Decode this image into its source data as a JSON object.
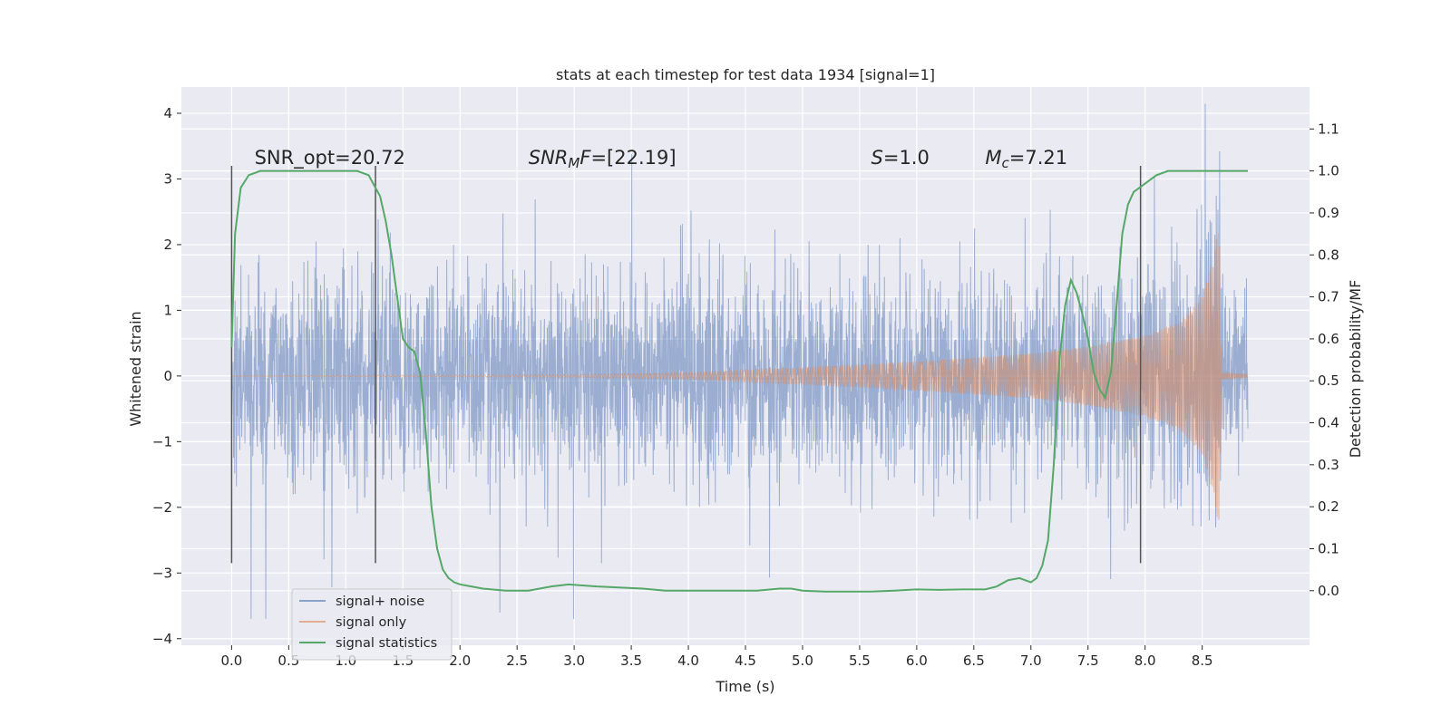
{
  "chart_data": {
    "type": "line",
    "title": "stats at each timestep for test data 1934 [signal=1]",
    "xlabel": "Time (s)",
    "ylabel": "Whitened strain",
    "y2label": "Detection probability/MF",
    "xlim": [
      -0.44,
      9.44
    ],
    "ylim": [
      -4.1,
      4.4
    ],
    "y2lim": [
      -0.13,
      1.2
    ],
    "xticks": [
      0.0,
      0.5,
      1.0,
      1.5,
      2.0,
      2.5,
      3.0,
      3.5,
      4.0,
      4.5,
      5.0,
      5.5,
      6.0,
      6.5,
      7.0,
      7.5,
      8.0,
      8.5
    ],
    "xtick_labels": [
      "0.0",
      "0.5",
      "1.0",
      "1.5",
      "2.0",
      "2.5",
      "3.0",
      "3.5",
      "4.0",
      "4.5",
      "5.0",
      "5.5",
      "6.0",
      "6.5",
      "7.0",
      "7.5",
      "8.0",
      "8.5"
    ],
    "yticks": [
      4,
      3,
      2,
      1,
      0,
      -1,
      -2,
      -3,
      -4
    ],
    "ytick_labels": [
      "4",
      "3",
      "2",
      "1",
      "0",
      "−1",
      "−2",
      "−3",
      "−4"
    ],
    "y2ticks": [
      1.1,
      1.0,
      0.9,
      0.8,
      0.7,
      0.6,
      0.5,
      0.4,
      0.3,
      0.2,
      0.1,
      0.0
    ],
    "y2tick_labels": [
      "1.1",
      "1.0",
      "0.9",
      "0.8",
      "0.7",
      "0.6",
      "0.5",
      "0.4",
      "0.3",
      "0.2",
      "0.1",
      "0.0"
    ],
    "grid": true,
    "legend_position": "lower-left",
    "legend": [
      "signal+ noise",
      "signal only",
      "signal statistics"
    ],
    "series": [
      {
        "name": "signal+ noise",
        "axis": "left",
        "color": "#4c72b0",
        "opacity": 0.5,
        "x_range": [
          0.0,
          8.9
        ],
        "description_values": {
          "typical_abs": 1.5,
          "max": 4.0,
          "min": -3.7
        }
      },
      {
        "name": "signal only",
        "axis": "left",
        "color": "#dd8452",
        "x_range": [
          0.0,
          8.9
        ],
        "envelope": {
          "t": [
            0.0,
            3.0,
            4.0,
            5.0,
            6.0,
            7.0,
            7.5,
            8.0,
            8.3,
            8.5,
            8.6,
            8.65,
            8.67,
            8.9
          ],
          "amp": [
            0.0,
            0.02,
            0.05,
            0.13,
            0.22,
            0.34,
            0.45,
            0.62,
            0.82,
            1.2,
            1.8,
            2.4,
            0.05,
            0.02
          ]
        }
      },
      {
        "name": "signal statistics",
        "axis": "right",
        "color": "#55a868",
        "x": [
          0.0,
          0.03,
          0.08,
          0.15,
          0.25,
          0.4,
          0.6,
          0.8,
          1.0,
          1.1,
          1.2,
          1.3,
          1.35,
          1.4,
          1.45,
          1.5,
          1.55,
          1.6,
          1.65,
          1.7,
          1.75,
          1.8,
          1.85,
          1.9,
          1.95,
          2.0,
          2.1,
          2.2,
          2.4,
          2.6,
          2.8,
          2.95,
          3.2,
          3.6,
          3.8,
          4.2,
          4.6,
          4.8,
          4.9,
          5.0,
          5.2,
          5.6,
          5.8,
          6.0,
          6.2,
          6.4,
          6.6,
          6.7,
          6.8,
          6.9,
          7.0,
          7.05,
          7.1,
          7.15,
          7.2,
          7.25,
          7.3,
          7.35,
          7.4,
          7.45,
          7.5,
          7.55,
          7.6,
          7.65,
          7.7,
          7.75,
          7.8,
          7.85,
          7.9,
          8.0,
          8.1,
          8.2,
          8.3,
          8.4,
          8.5,
          8.7,
          8.9
        ],
        "y": [
          0.58,
          0.85,
          0.96,
          0.99,
          1.0,
          1.0,
          1.0,
          1.0,
          1.0,
          1.0,
          0.99,
          0.94,
          0.88,
          0.8,
          0.7,
          0.6,
          0.58,
          0.57,
          0.52,
          0.38,
          0.2,
          0.1,
          0.05,
          0.03,
          0.02,
          0.015,
          0.01,
          0.005,
          0.0,
          0.0,
          0.01,
          0.015,
          0.01,
          0.005,
          0.0,
          0.0,
          0.0,
          0.005,
          0.005,
          0.0,
          -0.002,
          -0.002,
          0.0,
          0.003,
          0.002,
          0.003,
          0.003,
          0.01,
          0.025,
          0.03,
          0.02,
          0.03,
          0.06,
          0.12,
          0.3,
          0.55,
          0.68,
          0.74,
          0.71,
          0.66,
          0.6,
          0.52,
          0.48,
          0.46,
          0.52,
          0.68,
          0.85,
          0.92,
          0.95,
          0.97,
          0.99,
          1.0,
          1.0,
          1.0,
          1.0,
          1.0,
          1.0
        ]
      }
    ],
    "vlines": [
      {
        "x": 0.0,
        "y_range": [
          -2.85,
          3.2
        ]
      },
      {
        "x": 1.26,
        "y_range": [
          -2.85,
          3.2
        ]
      },
      {
        "x": 7.96,
        "y_range": [
          -2.85,
          3.2
        ]
      }
    ],
    "annotations": [
      {
        "id": "snr-opt",
        "x": 0.2,
        "y": 3.2,
        "parts": [
          [
            "SNR_opt=20.72",
            "n"
          ]
        ]
      },
      {
        "id": "snr-mf",
        "x": 2.6,
        "y": 3.2,
        "parts": [
          [
            "SNR",
            "i"
          ],
          [
            "M",
            "is"
          ],
          [
            "F",
            "i"
          ],
          [
            "=[22.19]",
            "n"
          ]
        ]
      },
      {
        "id": "s-value",
        "x": 5.6,
        "y": 3.2,
        "parts": [
          [
            "S",
            "i"
          ],
          [
            "=1.0",
            "n"
          ]
        ]
      },
      {
        "id": "mc-value",
        "x": 6.6,
        "y": 3.2,
        "parts": [
          [
            "M",
            "i"
          ],
          [
            "c",
            "is"
          ],
          [
            "=7.21",
            "n"
          ]
        ]
      }
    ]
  }
}
